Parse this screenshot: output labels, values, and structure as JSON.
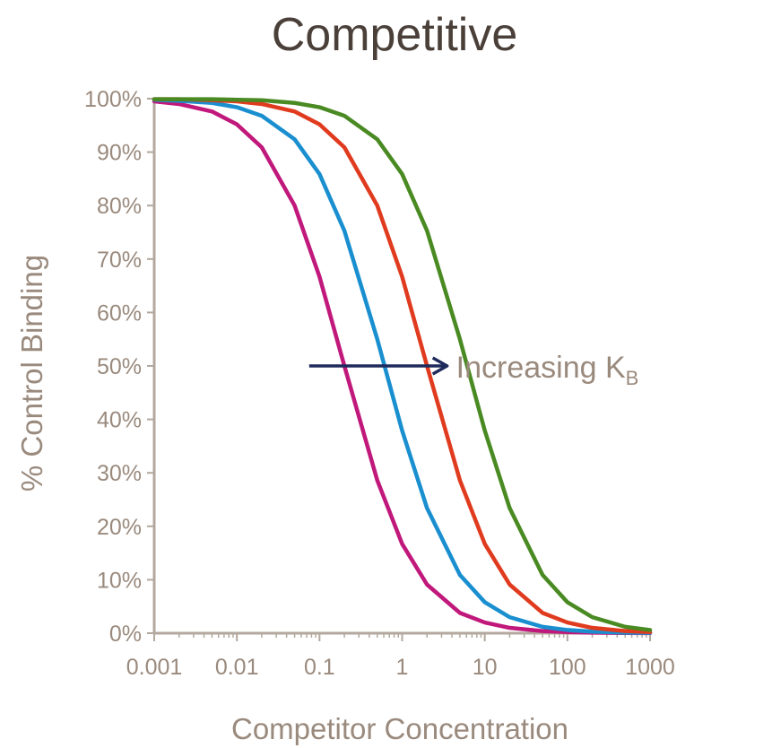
{
  "chart_data": {
    "type": "line",
    "title": "Competitive",
    "xlabel": "Competitor Concentration",
    "ylabel": "% Control Binding",
    "x_scale": "log",
    "xlim": [
      0.001,
      1000
    ],
    "ylim": [
      0,
      100
    ],
    "x_ticks": [
      {
        "value": 0.001,
        "label": "0.001"
      },
      {
        "value": 0.01,
        "label": "0.01"
      },
      {
        "value": 0.1,
        "label": "0.1"
      },
      {
        "value": 1,
        "label": "1"
      },
      {
        "value": 10,
        "label": "10"
      },
      {
        "value": 100,
        "label": "100"
      },
      {
        "value": 1000,
        "label": "1000"
      }
    ],
    "y_ticks": [
      {
        "value": 0,
        "label": "0%"
      },
      {
        "value": 10,
        "label": "10%"
      },
      {
        "value": 20,
        "label": "20%"
      },
      {
        "value": 30,
        "label": "30%"
      },
      {
        "value": 40,
        "label": "40%"
      },
      {
        "value": 50,
        "label": "50%"
      },
      {
        "value": 60,
        "label": "60%"
      },
      {
        "value": 70,
        "label": "70%"
      },
      {
        "value": 80,
        "label": "80%"
      },
      {
        "value": 90,
        "label": "90%"
      },
      {
        "value": 100,
        "label": "100%"
      }
    ],
    "grid": false,
    "legend": "none",
    "x": [
      0.001,
      0.002,
      0.005,
      0.01,
      0.02,
      0.05,
      0.1,
      0.2,
      0.5,
      1,
      2,
      5,
      10,
      20,
      50,
      100,
      200,
      500,
      1000
    ],
    "series": [
      {
        "color": "#c0187b",
        "values": [
          99.5,
          99.0,
          97.6,
          95.2,
          90.9,
          80.0,
          66.7,
          50.0,
          28.6,
          16.7,
          9.1,
          3.8,
          2.0,
          1.0,
          0.4,
          0.2,
          0.1,
          0.04,
          0.02
        ]
      },
      {
        "color": "#1a8fd0",
        "values": [
          99.8,
          99.6,
          99.2,
          98.4,
          96.8,
          92.4,
          85.9,
          75.3,
          55.0,
          37.9,
          23.4,
          10.9,
          5.8,
          3.0,
          1.2,
          0.6,
          0.3,
          0.1,
          0.06
        ]
      },
      {
        "color": "#e03b1e",
        "values": [
          99.9,
          99.9,
          99.7,
          99.5,
          99.0,
          97.6,
          95.2,
          90.9,
          80.0,
          66.7,
          50.0,
          28.6,
          16.7,
          9.1,
          3.8,
          2.0,
          1.0,
          0.4,
          0.2
        ]
      },
      {
        "color": "#4a8a22",
        "values": [
          99.9,
          99.9,
          99.9,
          99.8,
          99.7,
          99.2,
          98.4,
          96.8,
          92.4,
          85.9,
          75.3,
          55.0,
          37.9,
          23.4,
          10.9,
          5.8,
          3.0,
          1.2,
          0.6
        ]
      }
    ],
    "annotation": {
      "label": "Increasing K",
      "subscript": "B",
      "y": 50,
      "x_start": 0.075,
      "x_end": 3.5,
      "color": "#1f2a5c"
    },
    "colors": {
      "title": "#4a4039",
      "axis_text": "#9a8a7d",
      "axis_line": "#b3a89d"
    }
  }
}
